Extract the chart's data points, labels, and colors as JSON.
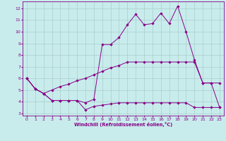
{
  "xlabel": "Windchill (Refroidissement éolien,°C)",
  "background_color": "#c8ecec",
  "line_color": "#880088",
  "grid_color": "#aacccc",
  "xlim": [
    -0.5,
    23.5
  ],
  "ylim": [
    2.8,
    12.6
  ],
  "yticks": [
    3,
    4,
    5,
    6,
    7,
    8,
    9,
    10,
    11,
    12
  ],
  "xticks": [
    0,
    1,
    2,
    3,
    4,
    5,
    6,
    7,
    8,
    9,
    10,
    11,
    12,
    13,
    14,
    15,
    16,
    17,
    18,
    19,
    20,
    21,
    22,
    23
  ],
  "line1_x": [
    0,
    1,
    2,
    3,
    4,
    5,
    6,
    7,
    8,
    9,
    10,
    11,
    12,
    13,
    14,
    15,
    16,
    17,
    18,
    19,
    20,
    21,
    22,
    23
  ],
  "line1_y": [
    6.0,
    5.1,
    4.7,
    4.1,
    4.1,
    4.1,
    4.1,
    3.3,
    3.6,
    3.7,
    3.8,
    3.9,
    3.9,
    3.9,
    3.9,
    3.9,
    3.9,
    3.9,
    3.9,
    3.9,
    3.5,
    3.5,
    3.5,
    3.5
  ],
  "line2_x": [
    0,
    1,
    2,
    3,
    4,
    5,
    6,
    7,
    8,
    9,
    10,
    11,
    12,
    13,
    14,
    15,
    16,
    17,
    18,
    19,
    20,
    21,
    22,
    23
  ],
  "line2_y": [
    6.0,
    5.1,
    4.7,
    5.0,
    5.3,
    5.5,
    5.8,
    6.0,
    6.3,
    6.6,
    6.9,
    7.1,
    7.4,
    7.4,
    7.4,
    7.4,
    7.4,
    7.4,
    7.4,
    7.4,
    7.4,
    5.6,
    5.6,
    5.6
  ],
  "line3_x": [
    0,
    1,
    2,
    3,
    4,
    5,
    6,
    7,
    8,
    9,
    10,
    11,
    12,
    13,
    14,
    15,
    16,
    17,
    18,
    19,
    20,
    21,
    22,
    23
  ],
  "line3_y": [
    6.0,
    5.1,
    4.7,
    4.1,
    4.1,
    4.1,
    4.1,
    3.9,
    4.2,
    8.9,
    8.9,
    9.5,
    10.6,
    11.5,
    10.6,
    10.7,
    11.6,
    10.7,
    12.2,
    10.0,
    7.6,
    5.6,
    5.6,
    3.5
  ]
}
